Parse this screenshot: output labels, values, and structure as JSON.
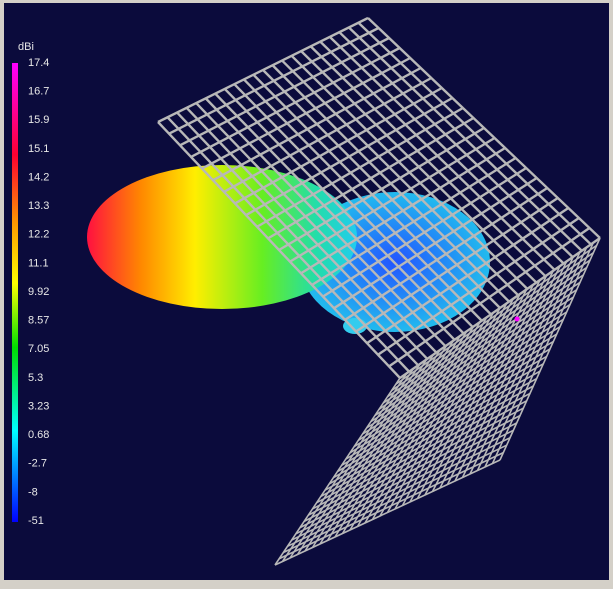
{
  "colorbar": {
    "unit": "dBi",
    "ticks": [
      17.4,
      16.7,
      15.9,
      15.1,
      14.2,
      13.3,
      12.2,
      11.1,
      9.92,
      8.57,
      7.05,
      5.3,
      3.23,
      0.68,
      -2.7,
      -8,
      -51
    ]
  }
}
